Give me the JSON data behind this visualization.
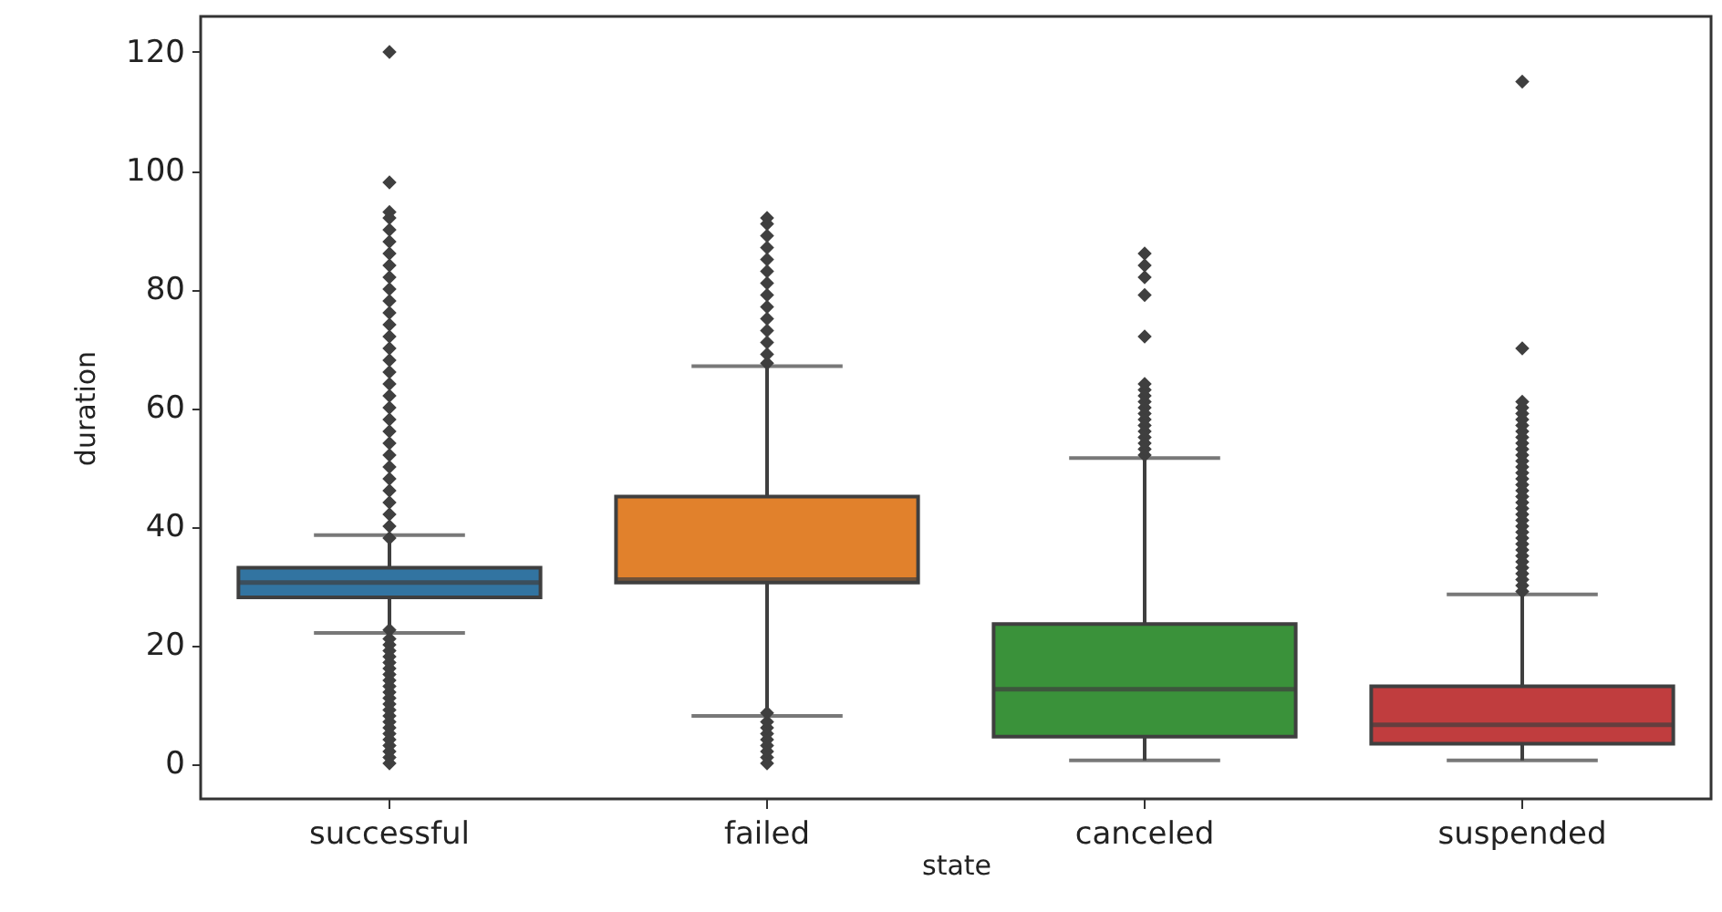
{
  "chart_data": {
    "type": "box",
    "xlabel": "state",
    "ylabel": "duration",
    "categories": [
      "successful",
      "failed",
      "canceled",
      "suspended"
    ],
    "colors": [
      "#3274a1",
      "#e1812c",
      "#3a923a",
      "#c03d3e"
    ],
    "boxes": [
      {
        "low": 22,
        "q1": 28,
        "median": 30.5,
        "q3": 33,
        "high": 38.5,
        "outliers": [
          0,
          1,
          2,
          3,
          4,
          5,
          6,
          7,
          8,
          9,
          10,
          11,
          12,
          13,
          14,
          15,
          16,
          17,
          18,
          19,
          20,
          21,
          22.5,
          38,
          40,
          42,
          44,
          46,
          48,
          50,
          52,
          54,
          56,
          58,
          60,
          62,
          64,
          66,
          68,
          70,
          72,
          74,
          76,
          78,
          80,
          82,
          84,
          86,
          88,
          90,
          92,
          93,
          98,
          120
        ]
      },
      {
        "low": 8,
        "q1": 30.5,
        "median": 31,
        "q3": 45,
        "high": 67,
        "outliers": [
          0,
          1,
          2,
          3,
          4,
          5,
          6,
          7,
          8.5,
          67.5,
          69,
          71,
          73,
          75,
          77,
          79,
          81,
          83,
          85,
          87,
          89,
          91,
          92
        ]
      },
      {
        "low": 0.5,
        "q1": 4.5,
        "median": 12.5,
        "q3": 23.5,
        "high": 51.5,
        "outliers": [
          52,
          53,
          54,
          55,
          56,
          57,
          58,
          59,
          60,
          61,
          62,
          63,
          64,
          72,
          79,
          82,
          84,
          86
        ]
      },
      {
        "low": 0.5,
        "q1": 3.3,
        "median": 6.5,
        "q3": 13,
        "high": 28.5,
        "outliers": [
          29,
          30,
          31,
          32,
          33,
          34,
          35,
          36,
          37,
          38,
          39,
          40,
          41,
          42,
          43,
          44,
          45,
          46,
          47,
          48,
          49,
          50,
          51,
          52,
          53,
          54,
          55,
          56,
          57,
          58,
          59,
          60,
          61,
          70,
          115
        ]
      }
    ],
    "ylim": [
      -6,
      126
    ],
    "yticks": [
      0,
      20,
      40,
      60,
      80,
      100,
      120
    ],
    "grid": false,
    "marker": "diamond"
  }
}
